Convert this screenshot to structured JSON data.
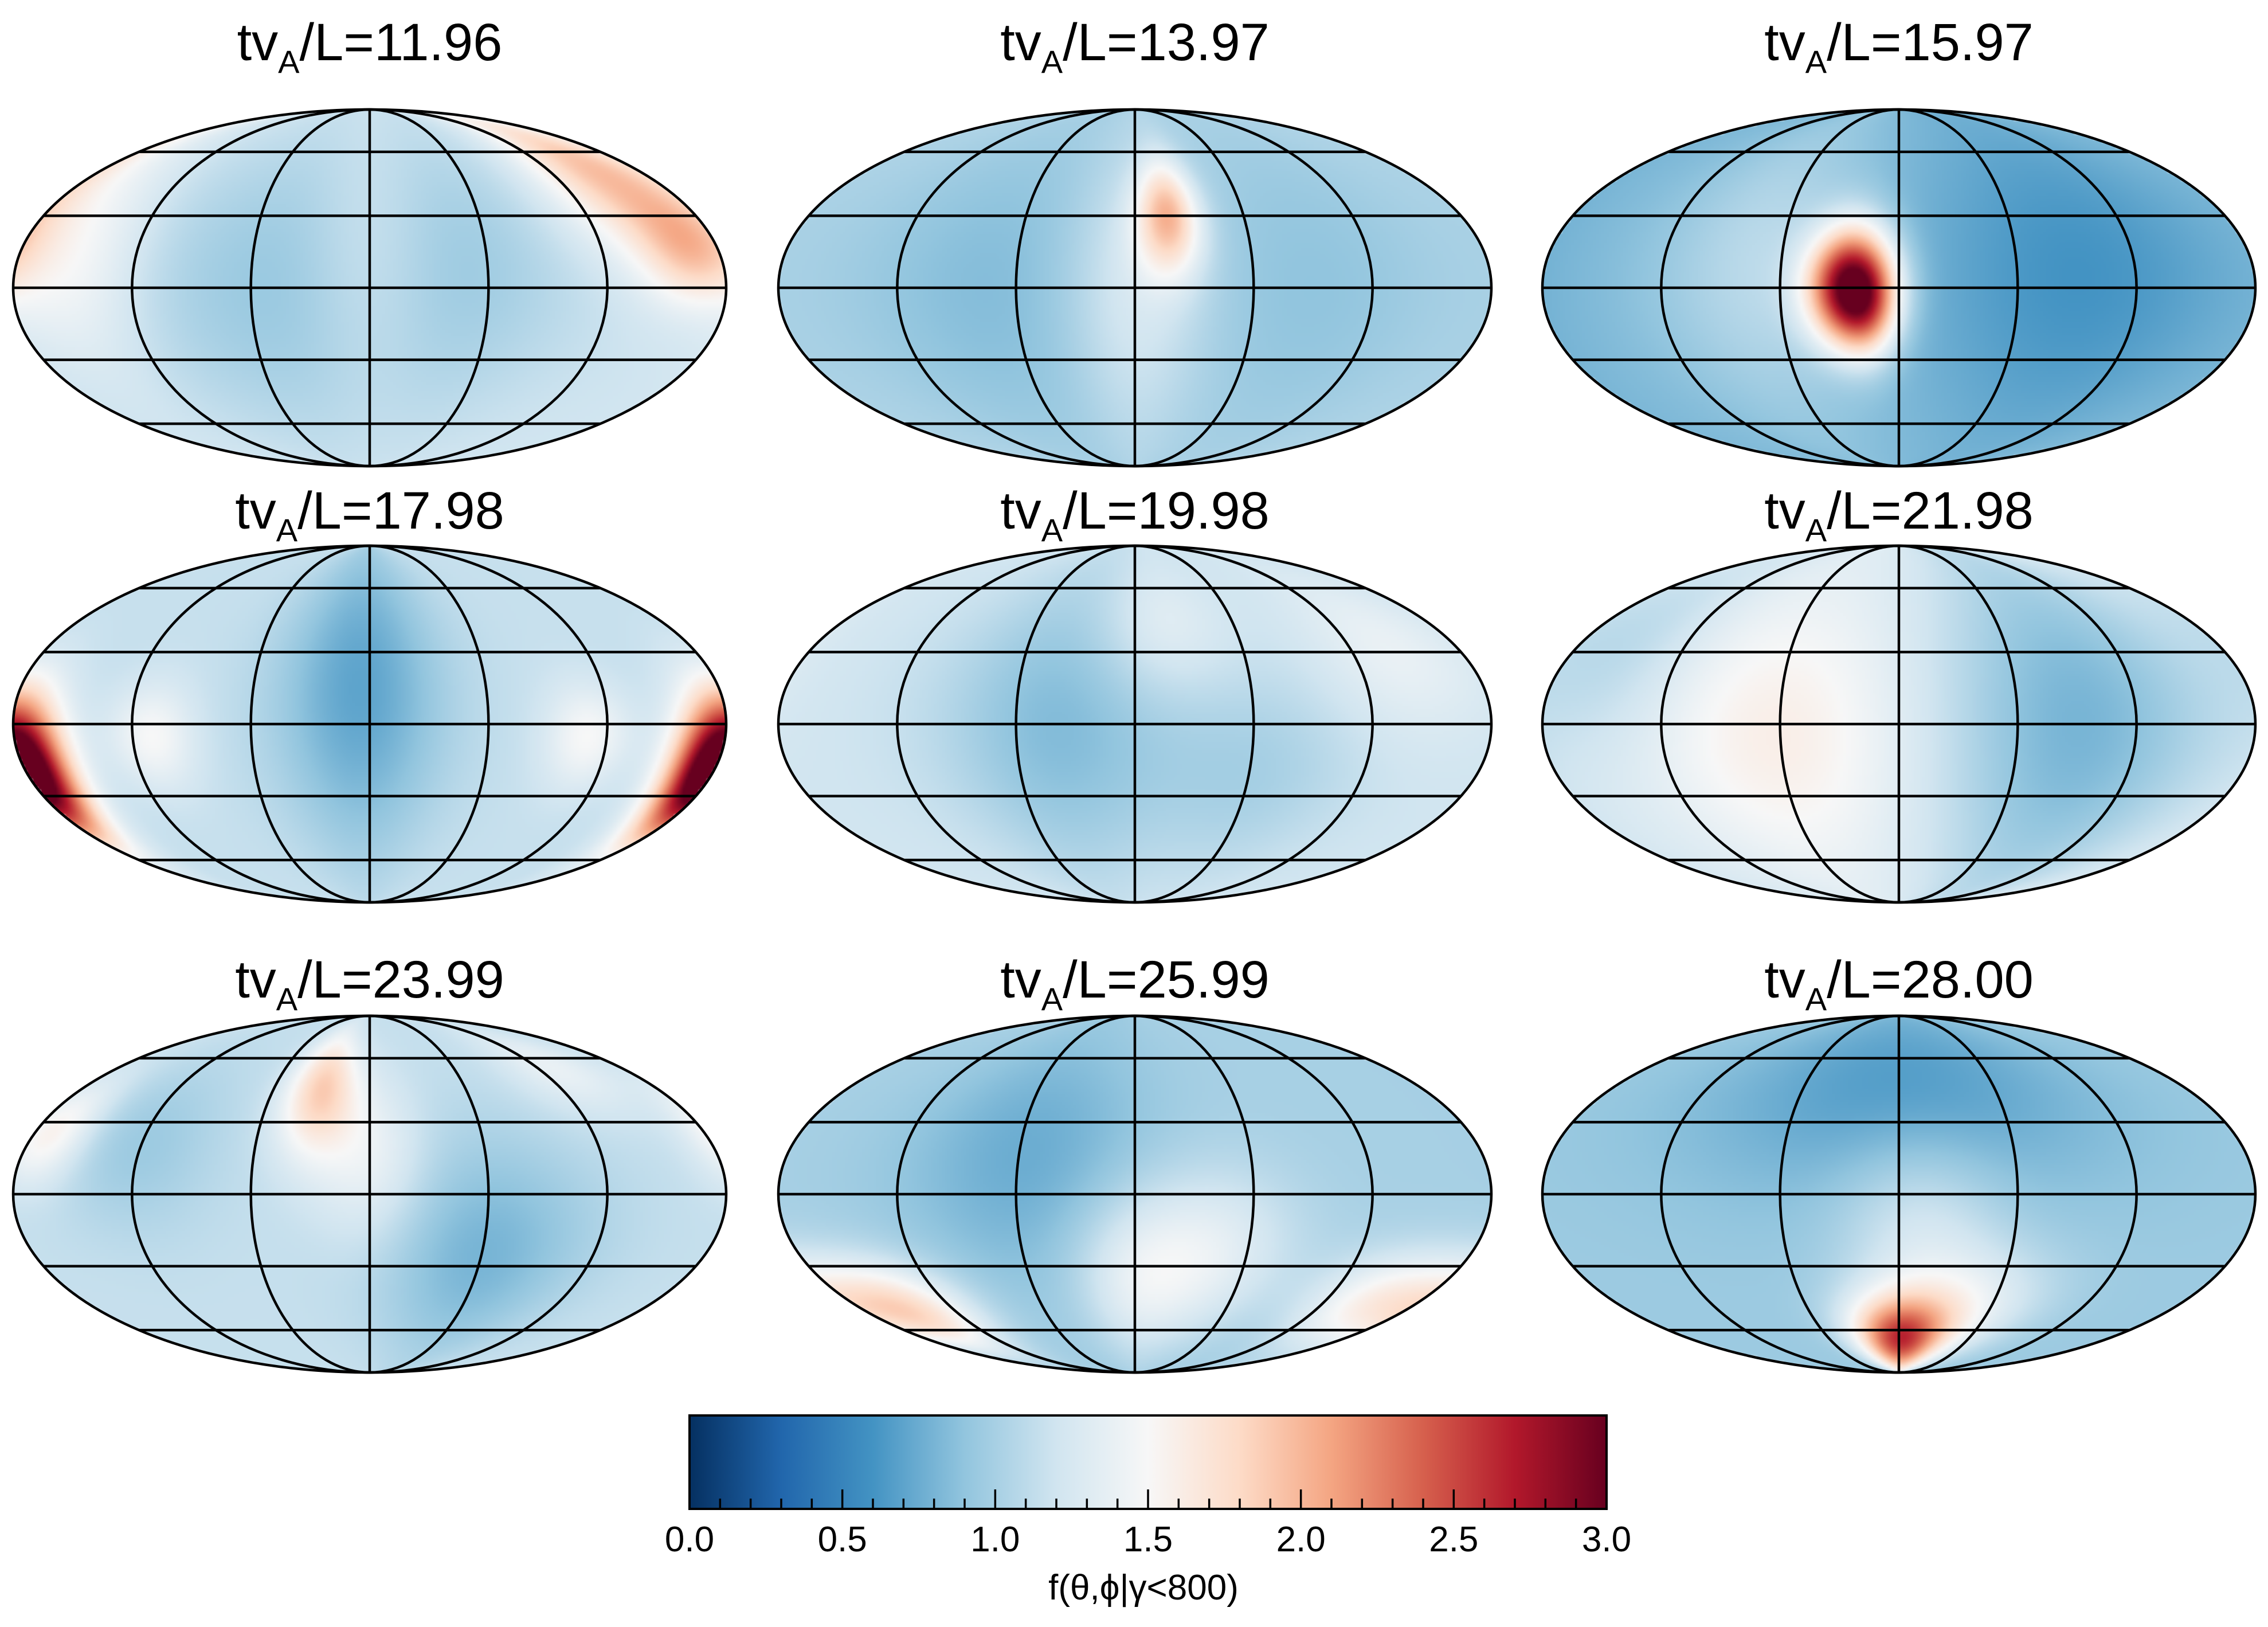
{
  "chart_data": {
    "type": "heatmap",
    "projection": "mollweide",
    "grid": true,
    "colorbar": {
      "label": "f(θ,ϕ|γ<800)",
      "range": [
        0.0,
        3.0
      ],
      "ticks": [
        "0.0",
        "0.5",
        "1.0",
        "1.5",
        "2.0",
        "2.5",
        "3.0"
      ],
      "colors": [
        "#053061",
        "#2166ac",
        "#4393c3",
        "#92c5de",
        "#d1e5f0",
        "#f7f7f7",
        "#fddbc7",
        "#f4a582",
        "#d6604d",
        "#b2182b",
        "#67001f"
      ]
    },
    "panels": [
      {
        "title": {
          "prefix": "tv",
          "sub": "A",
          "suffix": "/L=11.96"
        },
        "background": 1.2,
        "features": [
          {
            "lon": -45,
            "lat": 0,
            "width": 60,
            "height": 45,
            "amp": -0.25
          },
          {
            "lon": 40,
            "lat": 10,
            "width": 50,
            "height": 40,
            "amp": -0.2
          },
          {
            "lon": 0,
            "lat": 10,
            "width": 25,
            "height": 35,
            "amp": 0.25
          },
          {
            "lon": 150,
            "lat": 50,
            "width": 30,
            "height": 25,
            "amp": 0.75
          },
          {
            "lon": 165,
            "lat": 15,
            "width": 18,
            "height": 15,
            "amp": 0.55
          },
          {
            "lon": -150,
            "lat": 10,
            "width": 25,
            "height": 30,
            "amp": 0.3
          }
        ]
      },
      {
        "title": {
          "prefix": "tv",
          "sub": "A",
          "suffix": "/L=13.97"
        },
        "background": 1.05,
        "features": [
          {
            "lon": 18,
            "lat": 30,
            "width": 12,
            "height": 17,
            "amp": 0.9
          },
          {
            "lon": -70,
            "lat": 0,
            "width": 55,
            "height": 50,
            "amp": -0.2
          },
          {
            "lon": 90,
            "lat": 0,
            "width": 45,
            "height": 50,
            "amp": -0.15
          },
          {
            "lon": 0,
            "lat": 0,
            "width": 25,
            "height": 40,
            "amp": 0.3
          }
        ]
      },
      {
        "title": {
          "prefix": "tv",
          "sub": "A",
          "suffix": "/L=15.97"
        },
        "background": 0.85,
        "features": [
          {
            "lon": -24,
            "lat": 0,
            "width": 15,
            "height": 17,
            "amp": 2.15
          },
          {
            "lon": -15,
            "lat": -8,
            "width": 10,
            "height": 14,
            "amp": 0.4
          },
          {
            "lon": -70,
            "lat": 10,
            "width": 35,
            "height": 45,
            "amp": 0.25
          },
          {
            "lon": 90,
            "lat": 5,
            "width": 55,
            "height": 50,
            "amp": -0.25
          }
        ]
      },
      {
        "title": {
          "prefix": "tv",
          "sub": "A",
          "suffix": "/L=17.98"
        },
        "background": 1.15,
        "features": [
          {
            "lon": -5,
            "lat": 15,
            "width": 30,
            "height": 50,
            "amp": -0.45
          },
          {
            "lon": -175,
            "lat": -18,
            "width": 15,
            "height": 20,
            "amp": 1.3
          },
          {
            "lon": 175,
            "lat": -18,
            "width": 15,
            "height": 20,
            "amp": 1.3
          },
          {
            "lon": -110,
            "lat": -5,
            "width": 15,
            "height": 15,
            "amp": 0.35
          },
          {
            "lon": 110,
            "lat": -5,
            "width": 15,
            "height": 15,
            "amp": 0.35
          }
        ]
      },
      {
        "title": {
          "prefix": "tv",
          "sub": "A",
          "suffix": "/L=19.98"
        },
        "background": 1.2,
        "features": [
          {
            "lon": -40,
            "lat": 0,
            "width": 40,
            "height": 45,
            "amp": -0.35
          },
          {
            "lon": 60,
            "lat": -20,
            "width": 40,
            "height": 30,
            "amp": -0.2
          },
          {
            "lon": 15,
            "lat": 40,
            "width": 25,
            "height": 20,
            "amp": 0.2
          },
          {
            "lon": 140,
            "lat": 30,
            "width": 30,
            "height": 25,
            "amp": 0.2
          }
        ]
      },
      {
        "title": {
          "prefix": "tv",
          "sub": "A",
          "suffix": "/L=21.98"
        },
        "background": 1.3,
        "features": [
          {
            "lon": -60,
            "lat": -5,
            "width": 45,
            "height": 40,
            "amp": 0.3
          },
          {
            "lon": 90,
            "lat": 0,
            "width": 50,
            "height": 60,
            "amp": -0.5
          },
          {
            "lon": -150,
            "lat": 30,
            "width": 30,
            "height": 30,
            "amp": -0.2
          }
        ]
      },
      {
        "title": {
          "prefix": "tv",
          "sub": "A",
          "suffix": "/L=23.99"
        },
        "background": 1.15,
        "features": [
          {
            "lon": -30,
            "lat": 45,
            "width": 15,
            "height": 20,
            "amp": 0.7
          },
          {
            "lon": 60,
            "lat": -25,
            "width": 40,
            "height": 35,
            "amp": -0.35
          },
          {
            "lon": -120,
            "lat": 20,
            "width": 30,
            "height": 25,
            "amp": -0.2
          },
          {
            "lon": -170,
            "lat": 25,
            "width": 15,
            "height": 15,
            "amp": 0.45
          },
          {
            "lon": 0,
            "lat": 15,
            "width": 20,
            "height": 25,
            "amp": 0.3
          },
          {
            "lon": 130,
            "lat": 55,
            "width": 25,
            "height": 15,
            "amp": 0.25
          }
        ]
      },
      {
        "title": {
          "prefix": "tv",
          "sub": "A",
          "suffix": "/L=25.99"
        },
        "background": 1.0,
        "features": [
          {
            "lon": -55,
            "lat": 15,
            "width": 45,
            "height": 40,
            "amp": -0.25
          },
          {
            "lon": 40,
            "lat": -25,
            "width": 30,
            "height": 25,
            "amp": 0.35
          },
          {
            "lon": -150,
            "lat": -50,
            "width": 30,
            "height": 15,
            "amp": 0.8
          },
          {
            "lon": 150,
            "lat": -45,
            "width": 30,
            "height": 15,
            "amp": 0.55
          },
          {
            "lon": 0,
            "lat": -35,
            "width": 25,
            "height": 25,
            "amp": 0.35
          }
        ]
      },
      {
        "title": {
          "prefix": "tv",
          "sub": "A",
          "suffix": "/L=28.00"
        },
        "background": 0.95,
        "features": [
          {
            "lon": 0,
            "lat": -65,
            "width": 25,
            "height": 15,
            "amp": 1.5
          },
          {
            "lon": 40,
            "lat": -50,
            "width": 35,
            "height": 20,
            "amp": 0.45
          },
          {
            "lon": 0,
            "lat": 45,
            "width": 80,
            "height": 35,
            "amp": -0.3
          },
          {
            "lon": 10,
            "lat": -10,
            "width": 30,
            "height": 25,
            "amp": 0.3
          }
        ]
      }
    ]
  }
}
